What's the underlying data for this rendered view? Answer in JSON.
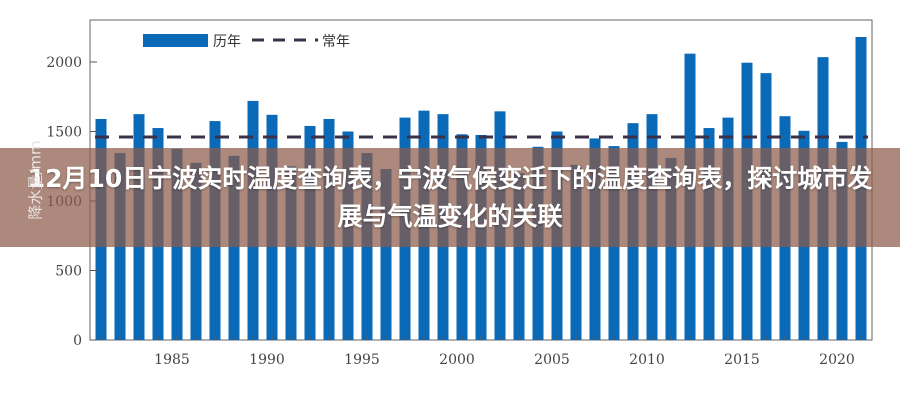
{
  "banner": {
    "title": "12月10日宁波实时温度查询表，宁波气候变迁下的温度查询表，探讨城市发展与气温变化的关联"
  },
  "chart_data": {
    "type": "bar",
    "title": "",
    "xlabel": "",
    "ylabel": "降水量/mm",
    "ylim": [
      0,
      2300
    ],
    "yticks": [
      0,
      500,
      1000,
      1500,
      2000
    ],
    "xticks": [
      1985,
      1990,
      1995,
      2000,
      2005,
      2010,
      2015,
      2020
    ],
    "grid": false,
    "legend_position": "top-left",
    "colors": {
      "bars": "#0a6ab8",
      "normal_line": "#3a3048",
      "axes": "#555555"
    },
    "x": [
      1981,
      1982,
      1983,
      1984,
      1985,
      1986,
      1987,
      1988,
      1989,
      1990,
      1991,
      1992,
      1993,
      1994,
      1995,
      1996,
      1997,
      1998,
      1999,
      2000,
      2001,
      2002,
      2003,
      2004,
      2005,
      2006,
      2007,
      2008,
      2009,
      2010,
      2011,
      2012,
      2013,
      2014,
      2015,
      2016,
      2017,
      2018,
      2019,
      2020,
      2021
    ],
    "series": [
      {
        "name": "历年",
        "values": [
          1590,
          1345,
          1625,
          1525,
          1375,
          1275,
          1575,
          1325,
          1720,
          1620,
          1250,
          1540,
          1590,
          1500,
          1345,
          1230,
          1600,
          1650,
          1625,
          1480,
          1475,
          1645,
          1200,
          1390,
          1500,
          1260,
          1450,
          1395,
          1560,
          1625,
          1310,
          2060,
          1525,
          1600,
          1995,
          1920,
          1610,
          1505,
          2035,
          1425,
          2180
        ]
      },
      {
        "name": "常年",
        "type": "hline",
        "value": 1460
      }
    ]
  }
}
